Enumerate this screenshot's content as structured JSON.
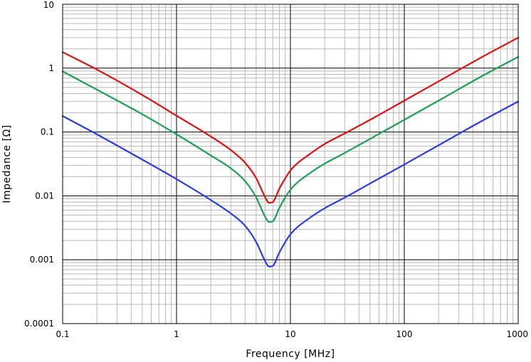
{
  "chart_data": {
    "type": "line",
    "title": "",
    "xlabel": "Frequency [MHz]",
    "ylabel": "Impedance [Ω]",
    "x_scale": "log",
    "y_scale": "log",
    "xlim": [
      0.1,
      1000
    ],
    "ylim": [
      0.0001,
      10
    ],
    "grid": true,
    "x_tick_labels": [
      "0.1",
      "1",
      "10",
      "100",
      "1000"
    ],
    "y_tick_labels": [
      "0.0001",
      "0.001",
      "0.01",
      "0.1",
      "1",
      "10"
    ],
    "series": [
      {
        "color": "#e01010",
        "x": [
          0.1,
          0.2,
          0.5,
          1,
          2,
          3,
          4,
          5,
          6,
          6.5,
          7,
          8,
          10,
          15,
          20,
          30,
          50,
          100,
          200,
          500,
          1000
        ],
        "y": [
          1.78,
          0.95,
          0.38,
          0.18,
          0.085,
          0.052,
          0.033,
          0.019,
          0.0095,
          0.0078,
          0.008,
          0.013,
          0.025,
          0.046,
          0.065,
          0.095,
          0.155,
          0.31,
          0.62,
          1.55,
          3.0
        ]
      },
      {
        "color": "#1aa050",
        "x": [
          0.1,
          0.2,
          0.5,
          1,
          2,
          3,
          4,
          5,
          6,
          6.5,
          7,
          8,
          10,
          15,
          20,
          30,
          50,
          100,
          200,
          500,
          1000
        ],
        "y": [
          0.89,
          0.46,
          0.19,
          0.092,
          0.043,
          0.027,
          0.017,
          0.0095,
          0.0047,
          0.0039,
          0.004,
          0.0065,
          0.0125,
          0.023,
          0.032,
          0.047,
          0.078,
          0.155,
          0.31,
          0.78,
          1.5
        ]
      },
      {
        "color": "#2b3de0",
        "x": [
          0.1,
          0.2,
          0.5,
          1,
          2,
          3,
          4,
          5,
          6,
          6.5,
          7,
          8,
          10,
          15,
          20,
          30,
          50,
          100,
          200,
          500,
          1000
        ],
        "y": [
          0.178,
          0.092,
          0.037,
          0.0183,
          0.0086,
          0.0053,
          0.0034,
          0.0019,
          0.00095,
          0.00078,
          0.0008,
          0.0013,
          0.0025,
          0.0046,
          0.0064,
          0.0094,
          0.0156,
          0.031,
          0.062,
          0.155,
          0.3
        ]
      }
    ]
  }
}
